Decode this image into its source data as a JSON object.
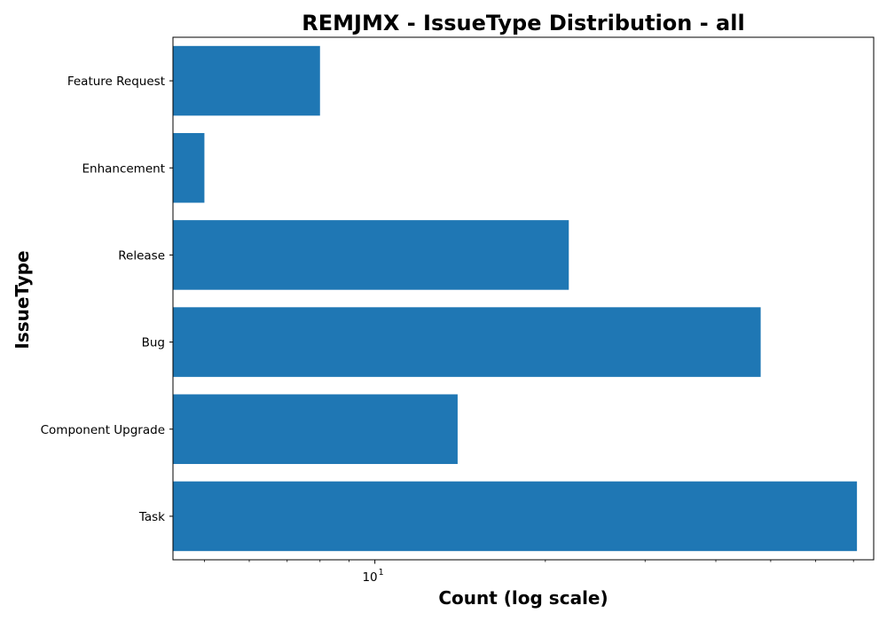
{
  "chart_data": {
    "type": "bar",
    "orientation": "horizontal",
    "title": "REMJMX - IssueType Distribution - all",
    "xlabel": "Count (log scale)",
    "ylabel": "IssueType",
    "xscale": "log",
    "xlim": [
      4.4,
      76
    ],
    "x_major_ticks": [
      {
        "value": 10,
        "base": "10",
        "exponent": "1"
      }
    ],
    "x_minor_ticks": [
      5,
      6,
      7,
      8,
      9,
      20,
      30,
      40,
      50,
      60,
      70
    ],
    "categories": [
      "Feature Request",
      "Enhancement",
      "Release",
      "Bug",
      "Component Upgrade",
      "Task"
    ],
    "values": [
      8,
      5,
      22,
      48,
      14,
      71
    ],
    "color": "#1f77b4",
    "grid": false,
    "legend": "none"
  }
}
